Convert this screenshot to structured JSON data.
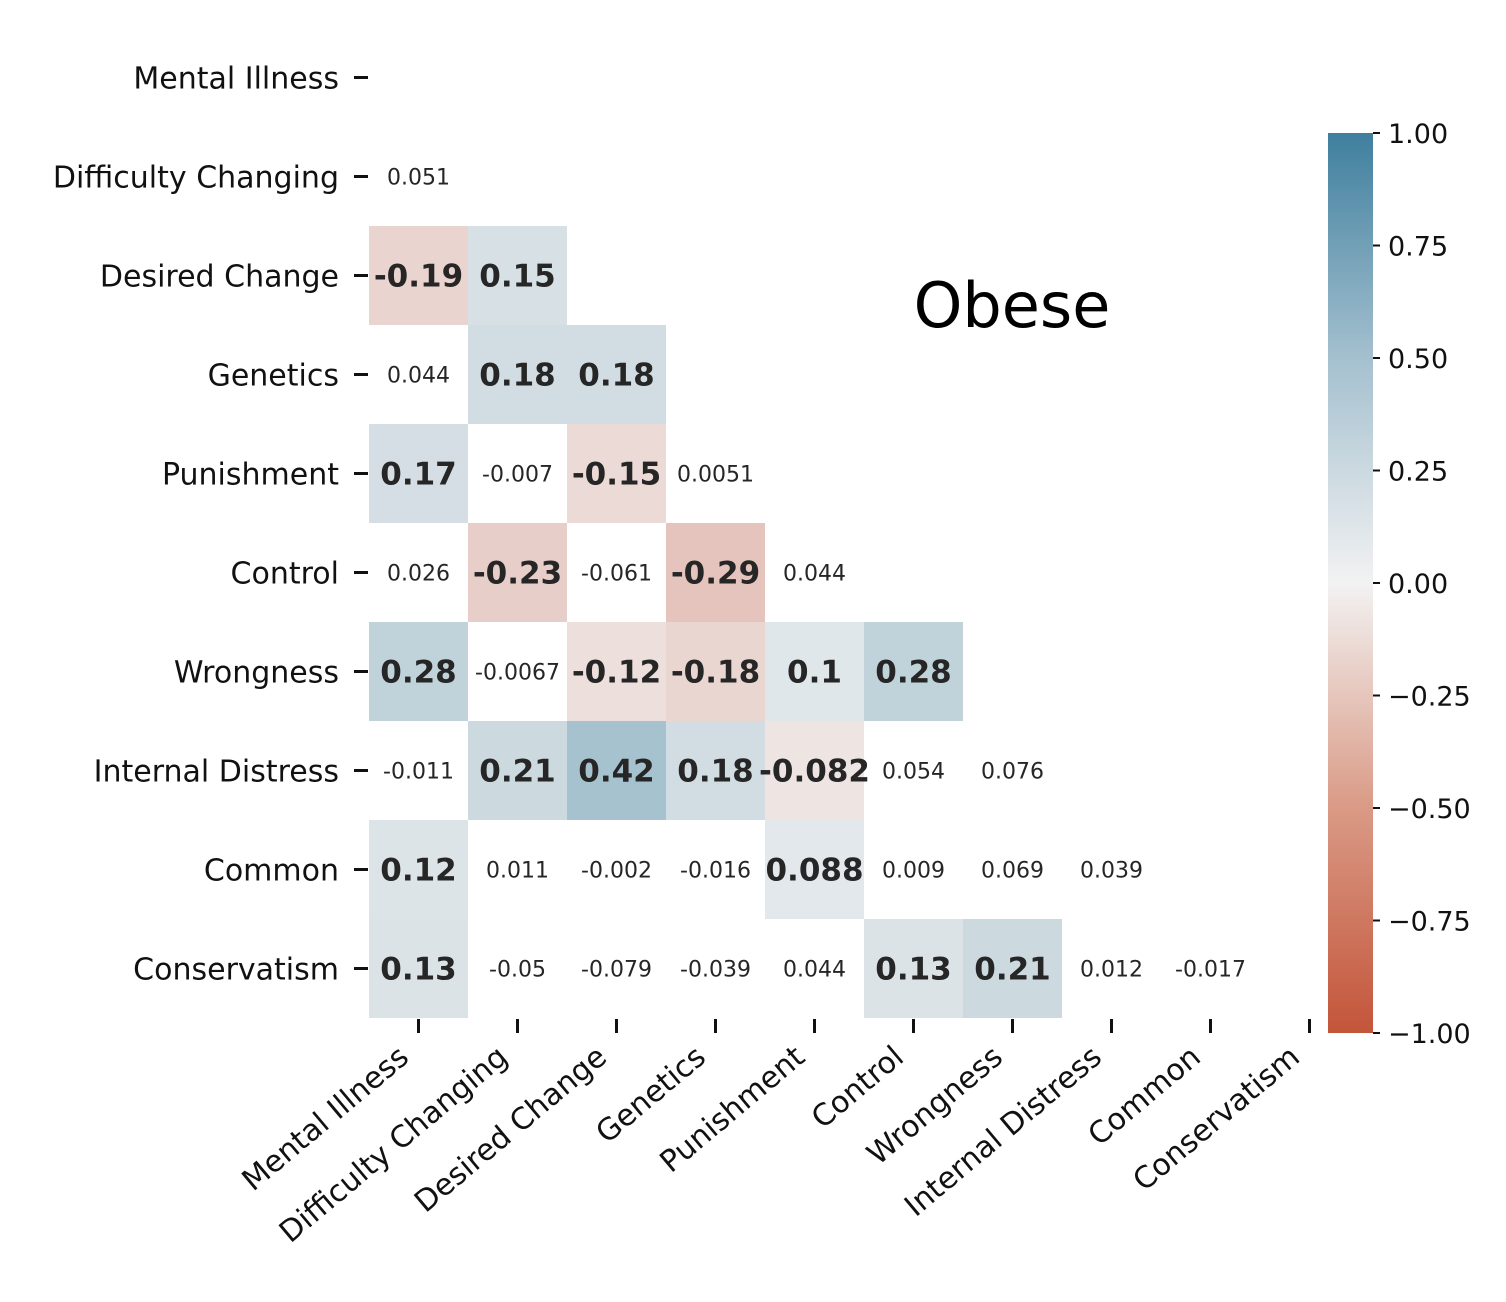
{
  "chart_data": {
    "type": "heatmap",
    "title": "Obese",
    "variables": [
      "Mental Illness",
      "Difficulty Changing",
      "Desired Change",
      "Genetics",
      "Punishment",
      "Control",
      "Wrongness",
      "Internal Distress",
      "Common",
      "Conservatism"
    ],
    "matrix_lower_triangle": [
      [],
      [
        "0.051"
      ],
      [
        "-0.19",
        "0.15"
      ],
      [
        "0.044",
        "0.18",
        "0.18"
      ],
      [
        "0.17",
        "-0.007",
        "-0.15",
        "0.0051"
      ],
      [
        "0.026",
        "-0.23",
        "-0.061",
        "-0.29",
        "0.044"
      ],
      [
        "0.28",
        "-0.0067",
        "-0.12",
        "-0.18",
        "0.1",
        "0.28"
      ],
      [
        "-0.011",
        "0.21",
        "0.42",
        "0.18",
        "-0.082",
        "0.054",
        "0.076"
      ],
      [
        "0.12",
        "0.011",
        "-0.002",
        "-0.016",
        "0.088",
        "0.009",
        "0.069",
        "0.039"
      ],
      [
        "0.13",
        "-0.05",
        "-0.079",
        "-0.039",
        "0.044",
        "0.13",
        "0.21",
        "0.012",
        "-0.017"
      ]
    ],
    "significant_shading_threshold": 0.08,
    "colorbar": {
      "range": [
        -1.0,
        1.0
      ],
      "ticks": [
        "1.00",
        "0.75",
        "0.50",
        "0.25",
        "0.00",
        "−0.25",
        "−0.50",
        "−0.75",
        "−1.00"
      ],
      "tick_values": [
        1.0,
        0.75,
        0.5,
        0.25,
        0.0,
        -0.25,
        -0.5,
        -0.75,
        -1.0
      ],
      "colors": {
        "negative": "#c3553a",
        "neutral": "#f2f2f2",
        "positive": "#3f7f9e"
      }
    }
  }
}
